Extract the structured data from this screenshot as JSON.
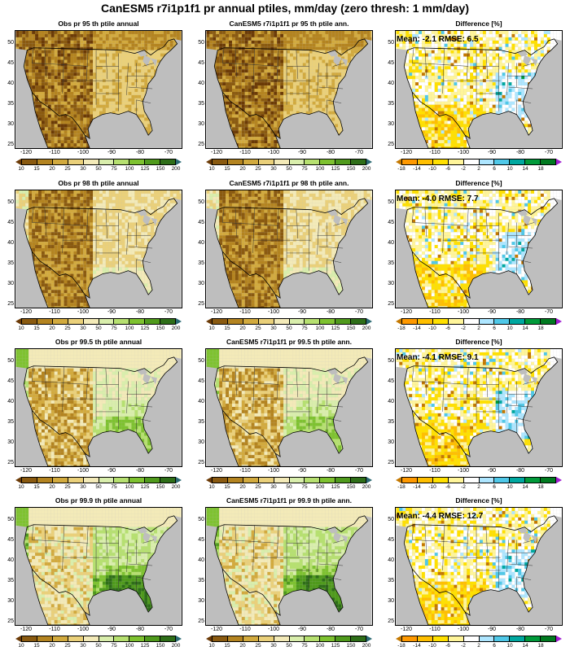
{
  "title": "CanESM5 r7i1p1f1 pr annual ptiles, mm/day (zero thresh: 1 mm/day)",
  "rows": [
    {
      "obs_title": "Obs pr 95 th ptile annual",
      "model_title": "CanESM5 r7i1p1f1 pr 95 th ptile ann.",
      "diff_title": "Difference [%]",
      "stat": "Mean: -2.1  RMSE: 6.5",
      "level": 0
    },
    {
      "obs_title": "Obs pr 98 th ptile annual",
      "model_title": "CanESM5 r7i1p1f1 pr 98 th ptile ann.",
      "diff_title": "Difference [%]",
      "stat": "Mean: -4.0  RMSE: 7.7",
      "level": 1
    },
    {
      "obs_title": "Obs pr 99.5 th ptile annual",
      "model_title": "CanESM5 r7i1p1f1 pr 99.5 th ptile ann.",
      "diff_title": "Difference [%]",
      "stat": "Mean: -4.1  RMSE: 9.1",
      "level": 2
    },
    {
      "obs_title": "Obs pr 99.9 th ptile annual",
      "model_title": "CanESM5 r7i1p1f1 pr 99.9 th ptile ann.",
      "diff_title": "Difference [%]",
      "stat": "Mean: -4.4  RMSE: 12.7",
      "level": 3
    }
  ],
  "lat_ticks": [
    "50",
    "45",
    "40",
    "35",
    "30",
    "25"
  ],
  "lon_ticks": [
    "-120",
    "-110",
    "-100",
    "-90",
    "-80",
    "-70"
  ],
  "precip_colorbar": {
    "labels": [
      "10",
      "15",
      "20",
      "25",
      "30",
      "50",
      "75",
      "100",
      "125",
      "150",
      "200"
    ],
    "colors": [
      "#6b3a06",
      "#8a5a10",
      "#b48420",
      "#d2aa3e",
      "#ead07a",
      "#f3eab8",
      "#d9eeac",
      "#b6e070",
      "#7ec230",
      "#4f9a1c",
      "#2e6e18",
      "#2a6a72"
    ]
  },
  "diff_colorbar": {
    "labels": [
      "-18",
      "-14",
      "-10",
      "-6",
      "-2",
      "2",
      "6",
      "10",
      "14",
      "18"
    ],
    "colors": [
      "#c47800",
      "#ff9900",
      "#ffbf00",
      "#ffe000",
      "#fff59a",
      "#ffffff",
      "#aee6ff",
      "#4fc8e8",
      "#00a8a0",
      "#009a3a",
      "#007a20",
      "#a020d0"
    ]
  },
  "colors": {
    "ocean": "#bebebe",
    "lakes": "#bebebe",
    "border": "#000000"
  }
}
